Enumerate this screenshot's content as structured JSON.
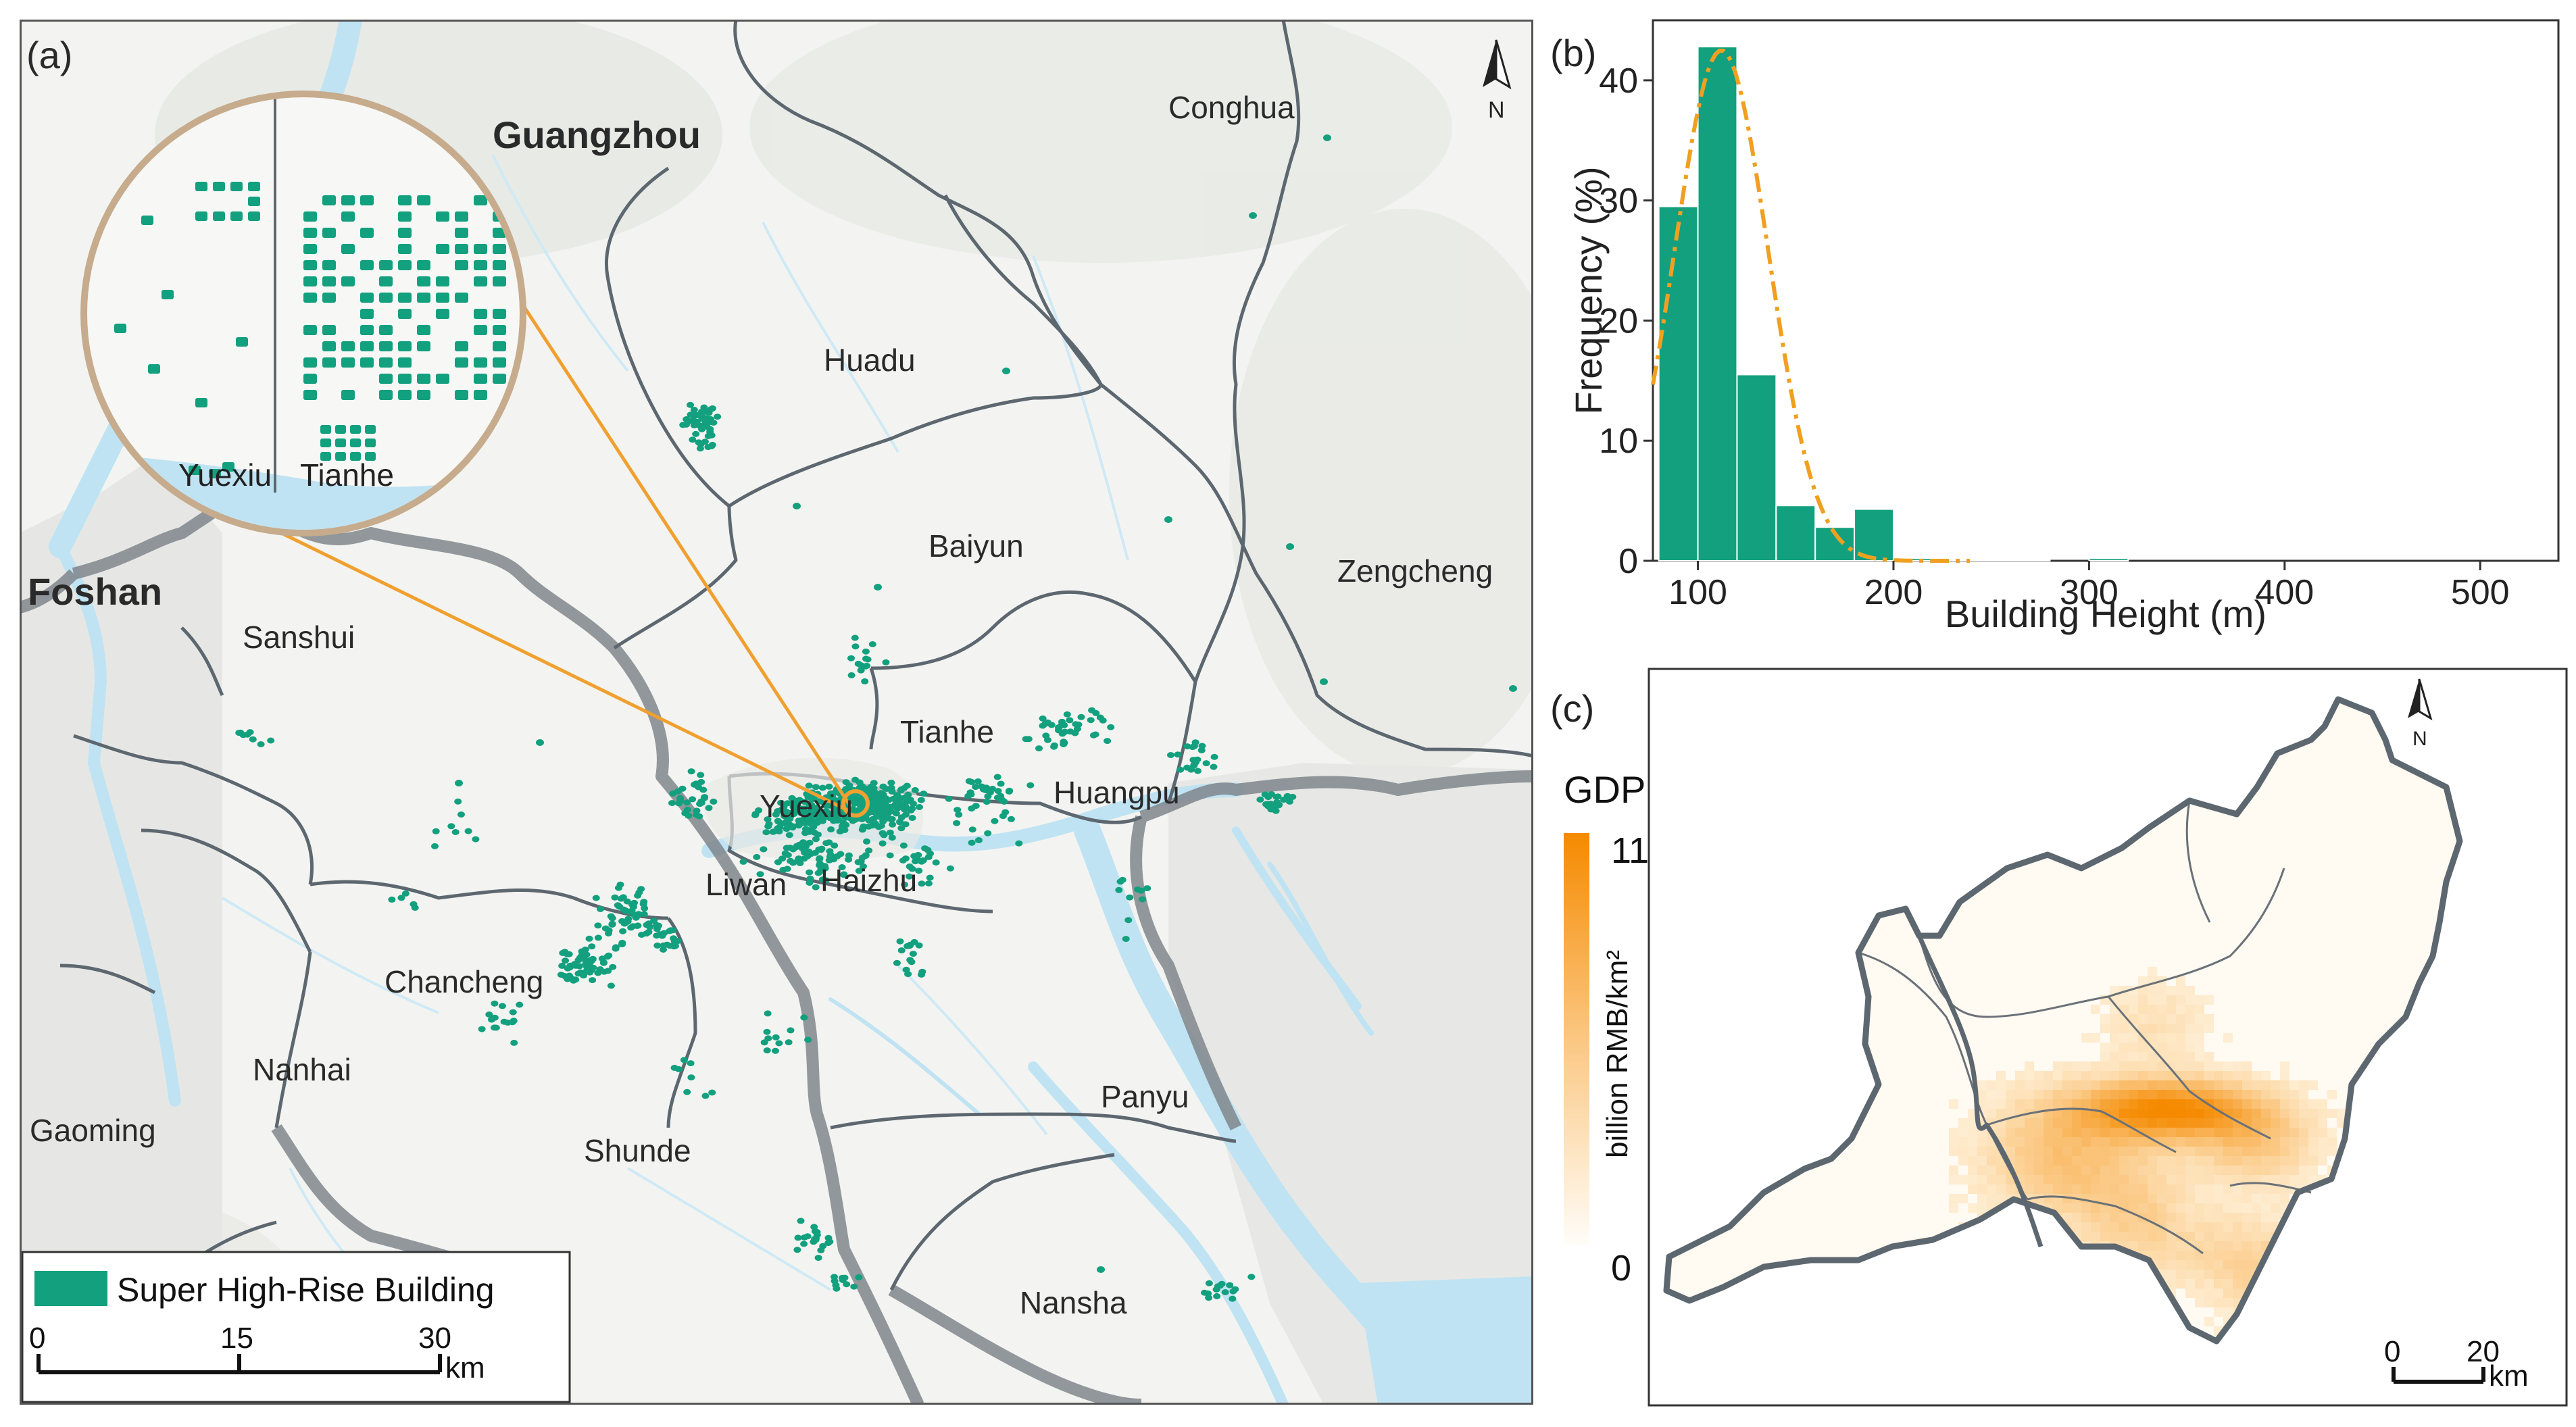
{
  "panel_a": {
    "label": "(a)",
    "cities": {
      "guangzhou": "Guangzhou",
      "foshan": "Foshan"
    },
    "districts": {
      "conghua": "Conghua",
      "huadu": "Huadu",
      "baiyun": "Baiyun",
      "zengcheng": "Zengcheng",
      "tianhe": "Tianhe",
      "huangpu": "Huangpu",
      "yuexiu": "Yuexiu",
      "liwan": "Liwan",
      "haizhu": "Haizhu",
      "sanshui": "Sanshui",
      "chancheng": "Chancheng",
      "nanhai": "Nanhai",
      "gaoming": "Gaoming",
      "shunde": "Shunde",
      "panyu": "Panyu",
      "nansha": "Nansha"
    },
    "inset": {
      "left_label": "Yuexiu",
      "right_label": "Tianhe"
    },
    "north_label": "N",
    "legend_label": "Super High-Rise Building",
    "scale": {
      "ticks": [
        "0",
        "15",
        "30"
      ],
      "unit": "km"
    },
    "colors": {
      "building": "#12a07e",
      "connector": "#f0a030",
      "boundary": "#5d6770",
      "water": "#bfe3f2"
    }
  },
  "panel_b": {
    "label": "(b)",
    "chart_data": {
      "type": "bar",
      "xlabel": "Building Height (m)",
      "ylabel": "Frequency (%)",
      "xlim": [
        77,
        540
      ],
      "ylim": [
        0,
        45
      ],
      "xticks": [
        "100",
        "200",
        "300",
        "400",
        "500"
      ],
      "yticks": [
        "0",
        "10",
        "20",
        "30",
        "40"
      ],
      "bin_width": 20,
      "bins": [
        {
          "x": 80,
          "value": 29.5
        },
        {
          "x": 100,
          "value": 42.8
        },
        {
          "x": 120,
          "value": 15.5
        },
        {
          "x": 140,
          "value": 4.6
        },
        {
          "x": 160,
          "value": 2.8
        },
        {
          "x": 180,
          "value": 4.3
        },
        {
          "x": 200,
          "value": 0.2
        },
        {
          "x": 220,
          "value": 0.1
        },
        {
          "x": 240,
          "value": 0.1
        },
        {
          "x": 260,
          "value": 0.1
        },
        {
          "x": 300,
          "value": 0.2
        }
      ],
      "fit": {
        "type": "normal",
        "mean": 112,
        "sd": 24,
        "peak": 42.5
      },
      "colors": {
        "bar": "#12a07e",
        "fit": "#f0a020"
      }
    }
  },
  "panel_c": {
    "label": "(c)",
    "north_label": "N",
    "colorbar": {
      "title": "GDP",
      "max": "11",
      "min": "0",
      "unit": "billion RMB/km²"
    },
    "scale": {
      "ticks": [
        "0",
        "20"
      ],
      "unit": "km"
    },
    "colors": {
      "high": "#f58a00",
      "low": "#fff7ea",
      "boundary": "#5d6770"
    }
  }
}
